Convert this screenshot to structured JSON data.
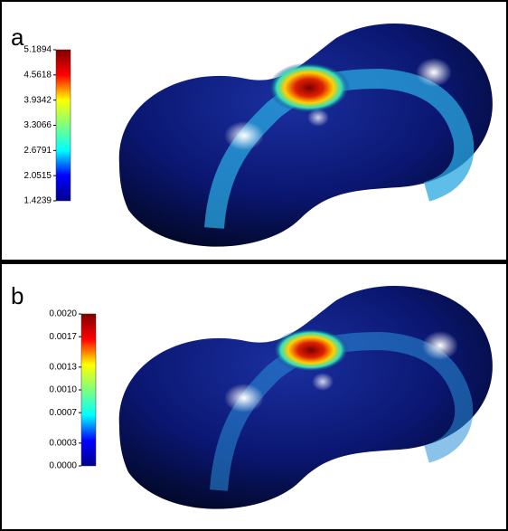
{
  "chart_data": [
    {
      "type": "surface",
      "title": "a",
      "colormap": "jet",
      "zlim": [
        1.4239,
        5.1894
      ],
      "zticks": [
        1.4239,
        2.0515,
        2.6791,
        3.3066,
        3.9342,
        4.5618,
        5.1894
      ]
    },
    {
      "type": "surface",
      "title": "b",
      "colormap": "jet",
      "zlim": [
        0,
        0.002
      ],
      "zticks": [
        {
          "value": 0,
          "label": "0.0000"
        },
        0.0003,
        0.0007,
        {
          "value": 0.001,
          "label": "0.0010"
        },
        0.0013,
        0.0017,
        {
          "value": 0.002,
          "label": "0.0020"
        }
      ]
    }
  ]
}
